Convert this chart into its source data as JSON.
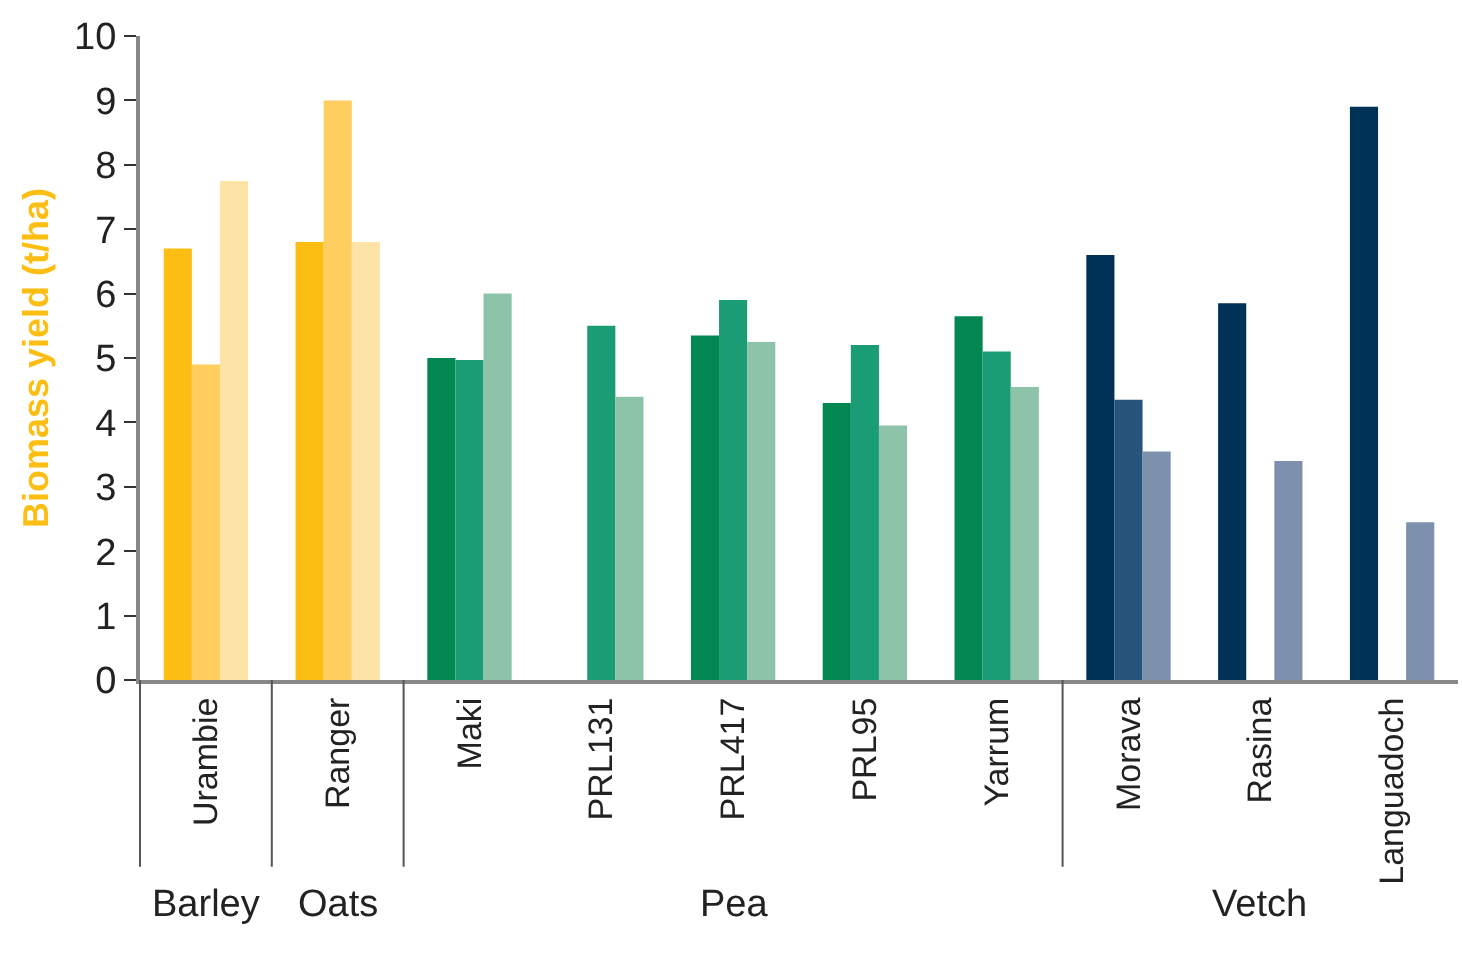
{
  "chart_data": {
    "type": "bar",
    "ylabel": "Biomass yield (t/ha)",
    "categories": [
      "Urambie",
      "Ranger",
      "Maki",
      "PRL131",
      "PRL417",
      "PRL95",
      "Yarrum",
      "Morava",
      "Rasina",
      "Languadoch"
    ],
    "series": [
      {
        "colors": [
          "#fdbe13",
          "#fdbe13",
          "#028752",
          "#028752",
          "#028752",
          "#028752",
          "#028752",
          "#003156",
          "#003156",
          "#003156"
        ],
        "values": [
          6.7,
          6.8,
          5.0,
          null,
          5.35,
          4.3,
          5.65,
          6.6,
          5.85,
          8.9
        ]
      },
      {
        "colors": [
          "#ffce5f",
          "#ffce5f",
          "#1a9d74",
          "#1a9d74",
          "#1a9d74",
          "#1a9d74",
          "#1a9d74",
          "#27547a",
          "#27547a",
          "#27547a"
        ],
        "values": [
          4.9,
          9.0,
          4.97,
          5.5,
          5.9,
          5.2,
          5.1,
          4.35,
          null,
          null
        ]
      },
      {
        "colors": [
          "#fee3a6",
          "#fee3a6",
          "#8dc3a9",
          "#8dc3a9",
          "#8dc3a9",
          "#8dc3a9",
          "#8dc3a9",
          "#7d90ae",
          "#7d90ae",
          "#7d90ae"
        ],
        "values": [
          7.75,
          6.8,
          6.0,
          4.4,
          5.25,
          3.95,
          4.55,
          3.55,
          3.4,
          2.45
        ]
      }
    ],
    "ylim": [
      0,
      10
    ],
    "yticks": [
      0,
      1,
      2,
      3,
      4,
      5,
      6,
      7,
      8,
      9,
      10
    ],
    "grid": false,
    "annotations": [
      "Barley",
      "Oats",
      "Pea",
      "Vetch"
    ]
  }
}
